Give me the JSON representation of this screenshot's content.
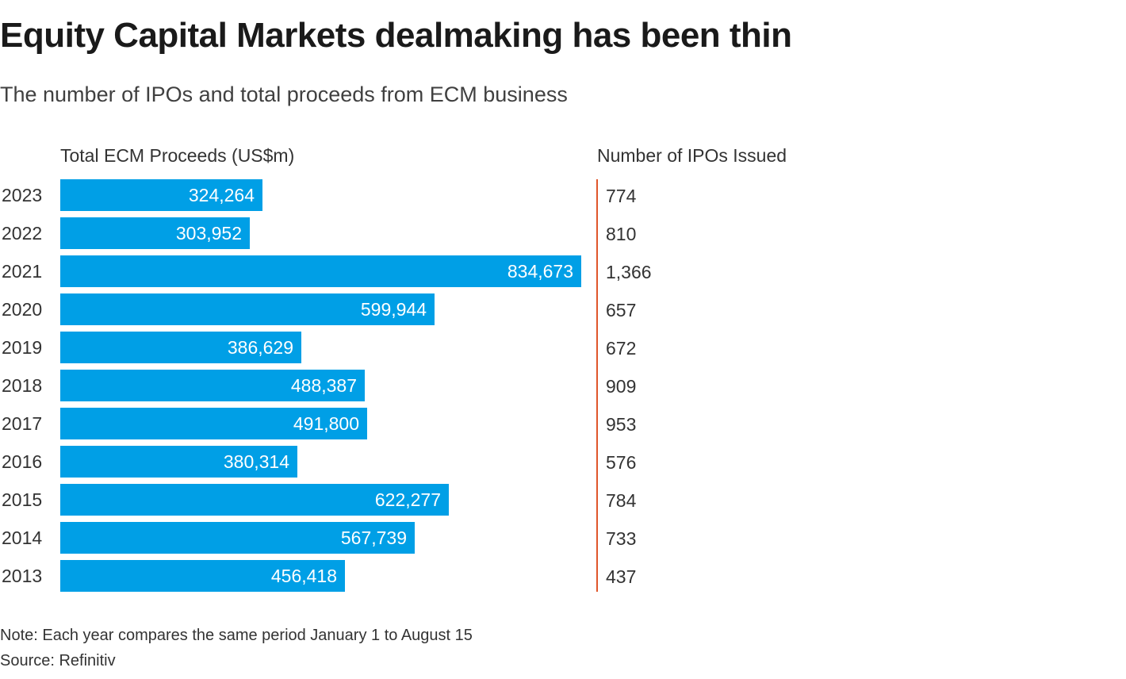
{
  "title": "Equity Capital Markets dealmaking has been thin",
  "subtitle": "The number of IPOs and total proceeds from ECM business",
  "notes": {
    "note": "Note: Each year compares the same period January 1 to August 15",
    "source": "Source: Refinitiv"
  },
  "colors": {
    "bar": "#009fe6",
    "ipo_rule": "#e0562b",
    "text": "#333333"
  },
  "chart_data": {
    "type": "bar",
    "orientation": "horizontal",
    "categories": [
      "2023",
      "2022",
      "2021",
      "2020",
      "2019",
      "2018",
      "2017",
      "2016",
      "2015",
      "2014",
      "2013"
    ],
    "series": [
      {
        "name": "Total ECM Proceeds (US$m)",
        "values": [
          324264,
          303952,
          834673,
          599944,
          386629,
          488387,
          491800,
          380314,
          622277,
          567739,
          456418
        ],
        "labels": [
          "324,264",
          "303,952",
          "834,673",
          "599,944",
          "386,629",
          "488,387",
          "491,800",
          "380,314",
          "622,277",
          "567,739",
          "456,418"
        ]
      },
      {
        "name": "Number of IPOs Issued",
        "values": [
          774,
          810,
          1366,
          657,
          672,
          909,
          953,
          576,
          784,
          733,
          437
        ],
        "labels": [
          "774",
          "810",
          "1,366",
          "657",
          "672",
          "909",
          "953",
          "576",
          "784",
          "733",
          "437"
        ]
      }
    ],
    "xlim": [
      0,
      834673
    ],
    "grid": false,
    "legend": "none",
    "data_labels": true
  }
}
